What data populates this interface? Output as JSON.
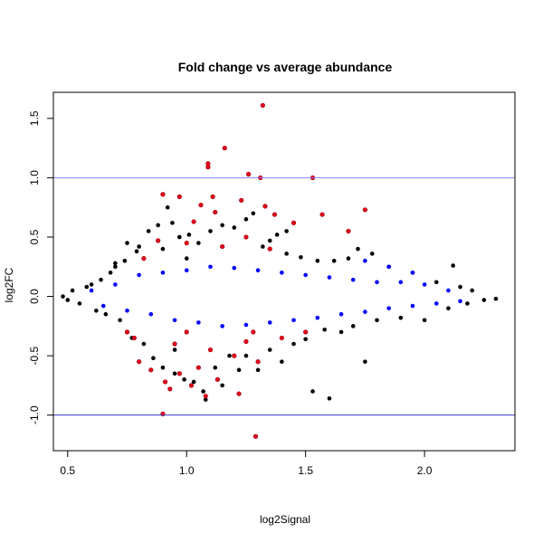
{
  "chart_data": {
    "type": "scatter",
    "title": "Fold change vs average abundance",
    "xlabel": "log2Signal",
    "ylabel": "log2FC",
    "xlim": [
      0.44,
      2.38
    ],
    "ylim": [
      -1.3,
      1.72
    ],
    "x_ticks": [
      0.5,
      1.0,
      1.5,
      2.0
    ],
    "x_tick_labels": [
      "0.5",
      "1.0",
      "1.5",
      "2.0"
    ],
    "y_ticks": [
      -1.0,
      -0.5,
      0.0,
      0.5,
      1.0,
      1.5
    ],
    "y_tick_labels": [
      "-1.0",
      "-0.5",
      "0.0",
      "0.5",
      "1.0",
      "1.5"
    ],
    "grid": false,
    "reference_lines": [
      {
        "y": 1.0,
        "color": "#8080ff"
      },
      {
        "y": -1.0,
        "color": "#4040c0"
      }
    ],
    "colors": {
      "black": "#000000",
      "blue": "#0000ff",
      "red": "#e8001c",
      "red_edge": "#8b0000"
    },
    "series": [
      {
        "color": "black",
        "points": [
          [
            0.48,
            0.0
          ],
          [
            0.5,
            -0.03
          ],
          [
            0.52,
            0.05
          ],
          [
            0.55,
            -0.06
          ],
          [
            0.58,
            0.08
          ],
          [
            0.6,
            0.1
          ],
          [
            0.62,
            -0.12
          ],
          [
            0.64,
            0.14
          ],
          [
            0.66,
            -0.15
          ],
          [
            0.68,
            0.2
          ],
          [
            0.7,
            0.25
          ],
          [
            0.72,
            -0.2
          ],
          [
            0.74,
            0.3
          ],
          [
            0.75,
            0.45
          ],
          [
            0.77,
            -0.35
          ],
          [
            0.79,
            0.38
          ],
          [
            0.8,
            0.42
          ],
          [
            0.82,
            -0.4
          ],
          [
            0.84,
            0.55
          ],
          [
            0.86,
            -0.52
          ],
          [
            0.88,
            0.6
          ],
          [
            0.9,
            -0.6
          ],
          [
            0.92,
            0.75
          ],
          [
            0.94,
            0.62
          ],
          [
            0.95,
            -0.65
          ],
          [
            0.97,
            0.5
          ],
          [
            0.99,
            -0.7
          ],
          [
            1.01,
            0.52
          ],
          [
            1.03,
            -0.72
          ],
          [
            1.05,
            0.45
          ],
          [
            1.07,
            -0.8
          ],
          [
            1.08,
            -0.87
          ],
          [
            1.1,
            0.55
          ],
          [
            1.12,
            -0.6
          ],
          [
            1.15,
            0.6
          ],
          [
            1.18,
            -0.5
          ],
          [
            1.2,
            0.58
          ],
          [
            1.22,
            -0.62
          ],
          [
            1.25,
            0.65
          ],
          [
            1.28,
            0.7
          ],
          [
            1.3,
            -0.62
          ],
          [
            1.32,
            0.42
          ],
          [
            1.35,
            -0.45
          ],
          [
            1.38,
            0.52
          ],
          [
            1.4,
            -0.55
          ],
          [
            1.42,
            0.36
          ],
          [
            1.45,
            -0.4
          ],
          [
            1.48,
            0.33
          ],
          [
            1.5,
            -0.36
          ],
          [
            1.53,
            -0.8
          ],
          [
            1.55,
            0.3
          ],
          [
            1.58,
            -0.28
          ],
          [
            1.6,
            -0.86
          ],
          [
            1.62,
            0.3
          ],
          [
            1.65,
            -0.3
          ],
          [
            1.68,
            0.32
          ],
          [
            1.7,
            -0.25
          ],
          [
            1.72,
            0.4
          ],
          [
            1.75,
            -0.55
          ],
          [
            1.78,
            0.36
          ],
          [
            1.8,
            -0.2
          ],
          [
            1.85,
            0.25
          ],
          [
            1.9,
            -0.18
          ],
          [
            1.95,
            0.2
          ],
          [
            2.0,
            -0.2
          ],
          [
            2.05,
            0.12
          ],
          [
            2.1,
            -0.1
          ],
          [
            2.12,
            0.26
          ],
          [
            2.15,
            0.08
          ],
          [
            2.18,
            -0.06
          ],
          [
            2.2,
            0.05
          ],
          [
            2.25,
            -0.03
          ],
          [
            2.3,
            -0.02
          ],
          [
            1.42,
            0.55
          ],
          [
            1.35,
            0.47
          ],
          [
            1.0,
            0.32
          ],
          [
            0.9,
            0.4
          ],
          [
            0.7,
            0.28
          ],
          [
            1.15,
            -0.75
          ],
          [
            1.25,
            -0.5
          ],
          [
            0.95,
            -0.45
          ]
        ]
      },
      {
        "color": "red",
        "points": [
          [
            1.32,
            1.61
          ],
          [
            1.16,
            1.25
          ],
          [
            1.09,
            1.12
          ],
          [
            1.09,
            1.09
          ],
          [
            1.26,
            1.03
          ],
          [
            1.53,
            1.0
          ],
          [
            1.31,
            1.0
          ],
          [
            0.9,
            0.86
          ],
          [
            0.97,
            0.84
          ],
          [
            1.11,
            0.84
          ],
          [
            1.23,
            0.81
          ],
          [
            1.06,
            0.77
          ],
          [
            1.33,
            0.76
          ],
          [
            1.75,
            0.73
          ],
          [
            1.12,
            0.71
          ],
          [
            1.37,
            0.69
          ],
          [
            1.57,
            0.69
          ],
          [
            1.03,
            0.63
          ],
          [
            1.45,
            0.62
          ],
          [
            1.68,
            0.55
          ],
          [
            1.25,
            0.5
          ],
          [
            0.88,
            0.47
          ],
          [
            1.0,
            0.45
          ],
          [
            1.15,
            0.42
          ],
          [
            1.35,
            0.4
          ],
          [
            0.82,
            0.32
          ],
          [
            1.28,
            -0.3
          ],
          [
            0.78,
            -0.35
          ],
          [
            0.95,
            -0.4
          ],
          [
            1.1,
            -0.45
          ],
          [
            1.2,
            -0.5
          ],
          [
            0.8,
            -0.55
          ],
          [
            1.05,
            -0.6
          ],
          [
            0.85,
            -0.62
          ],
          [
            1.3,
            -0.55
          ],
          [
            0.97,
            -0.65
          ],
          [
            1.13,
            -0.7
          ],
          [
            0.91,
            -0.72
          ],
          [
            1.02,
            -0.75
          ],
          [
            0.93,
            -0.78
          ],
          [
            1.22,
            -0.82
          ],
          [
            1.08,
            -0.84
          ],
          [
            0.9,
            -0.99
          ],
          [
            1.29,
            -1.18
          ],
          [
            1.4,
            -0.35
          ],
          [
            1.5,
            -0.3
          ],
          [
            0.75,
            -0.3
          ],
          [
            1.0,
            -0.3
          ],
          [
            1.25,
            -0.38
          ]
        ]
      },
      {
        "color": "blue",
        "points": [
          [
            0.6,
            0.05
          ],
          [
            0.65,
            -0.08
          ],
          [
            0.7,
            0.1
          ],
          [
            0.75,
            -0.12
          ],
          [
            0.8,
            0.18
          ],
          [
            0.85,
            -0.15
          ],
          [
            0.9,
            0.2
          ],
          [
            0.95,
            -0.2
          ],
          [
            1.0,
            0.22
          ],
          [
            1.05,
            -0.22
          ],
          [
            1.1,
            0.25
          ],
          [
            1.15,
            -0.25
          ],
          [
            1.2,
            0.24
          ],
          [
            1.25,
            -0.24
          ],
          [
            1.3,
            0.22
          ],
          [
            1.35,
            -0.22
          ],
          [
            1.4,
            0.2
          ],
          [
            1.45,
            -0.2
          ],
          [
            1.5,
            0.18
          ],
          [
            1.55,
            -0.18
          ],
          [
            1.6,
            0.16
          ],
          [
            1.65,
            -0.15
          ],
          [
            1.7,
            0.14
          ],
          [
            1.75,
            -0.13
          ],
          [
            1.8,
            0.12
          ],
          [
            1.85,
            -0.1
          ],
          [
            1.9,
            0.12
          ],
          [
            1.95,
            -0.08
          ],
          [
            2.0,
            0.1
          ],
          [
            2.05,
            -0.06
          ],
          [
            2.1,
            0.05
          ],
          [
            2.15,
            -0.04
          ],
          [
            1.85,
            0.25
          ],
          [
            1.95,
            0.2
          ],
          [
            1.75,
            0.3
          ]
        ]
      }
    ]
  }
}
